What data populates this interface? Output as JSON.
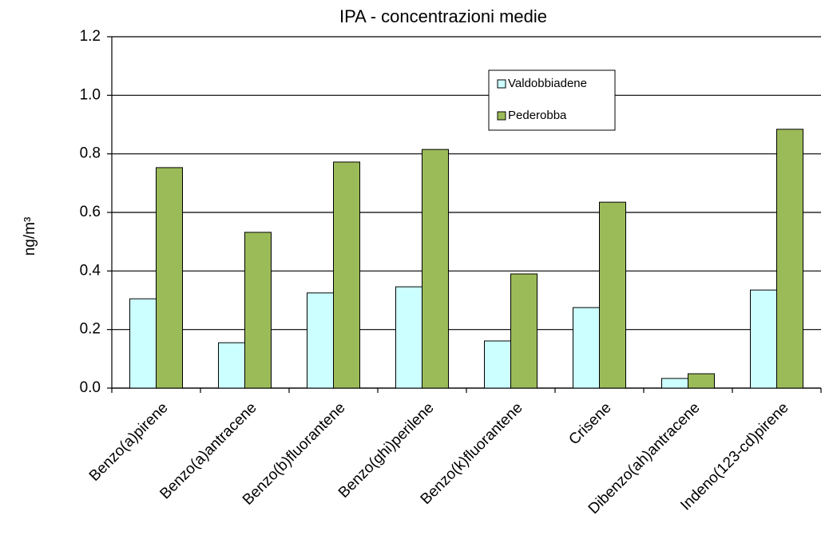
{
  "chart_data": {
    "type": "bar",
    "title": "IPA - concentrazioni medie",
    "y_label": "ng/m³",
    "categories": [
      "Benzo(a)pirene",
      "Benzo(a)antracene",
      "Benzo(b)fluorantene",
      "Benzo(ghi)perilene",
      "Benzo(k)fluorantene",
      "Crisene",
      "Dibenzo(ah)antracene",
      "Indeno(123-cd)pirene"
    ],
    "series": [
      {
        "name": "Valdobbiadene",
        "color": "#ccffff",
        "values": [
          0.305,
          0.155,
          0.325,
          0.346,
          0.161,
          0.275,
          0.033,
          0.335
        ]
      },
      {
        "name": "Pederobba",
        "color": "#9bbb59",
        "values": [
          0.753,
          0.532,
          0.772,
          0.815,
          0.39,
          0.635,
          0.049,
          0.884
        ]
      }
    ],
    "ylim": [
      0,
      1.2
    ],
    "yticks": [
      {
        "value": 0,
        "label": "0.0"
      },
      0.2,
      0.4,
      0.6,
      0.8,
      {
        "value": 1,
        "label": "1.0"
      },
      1.2
    ],
    "grid": true,
    "legend": "upper-right"
  }
}
